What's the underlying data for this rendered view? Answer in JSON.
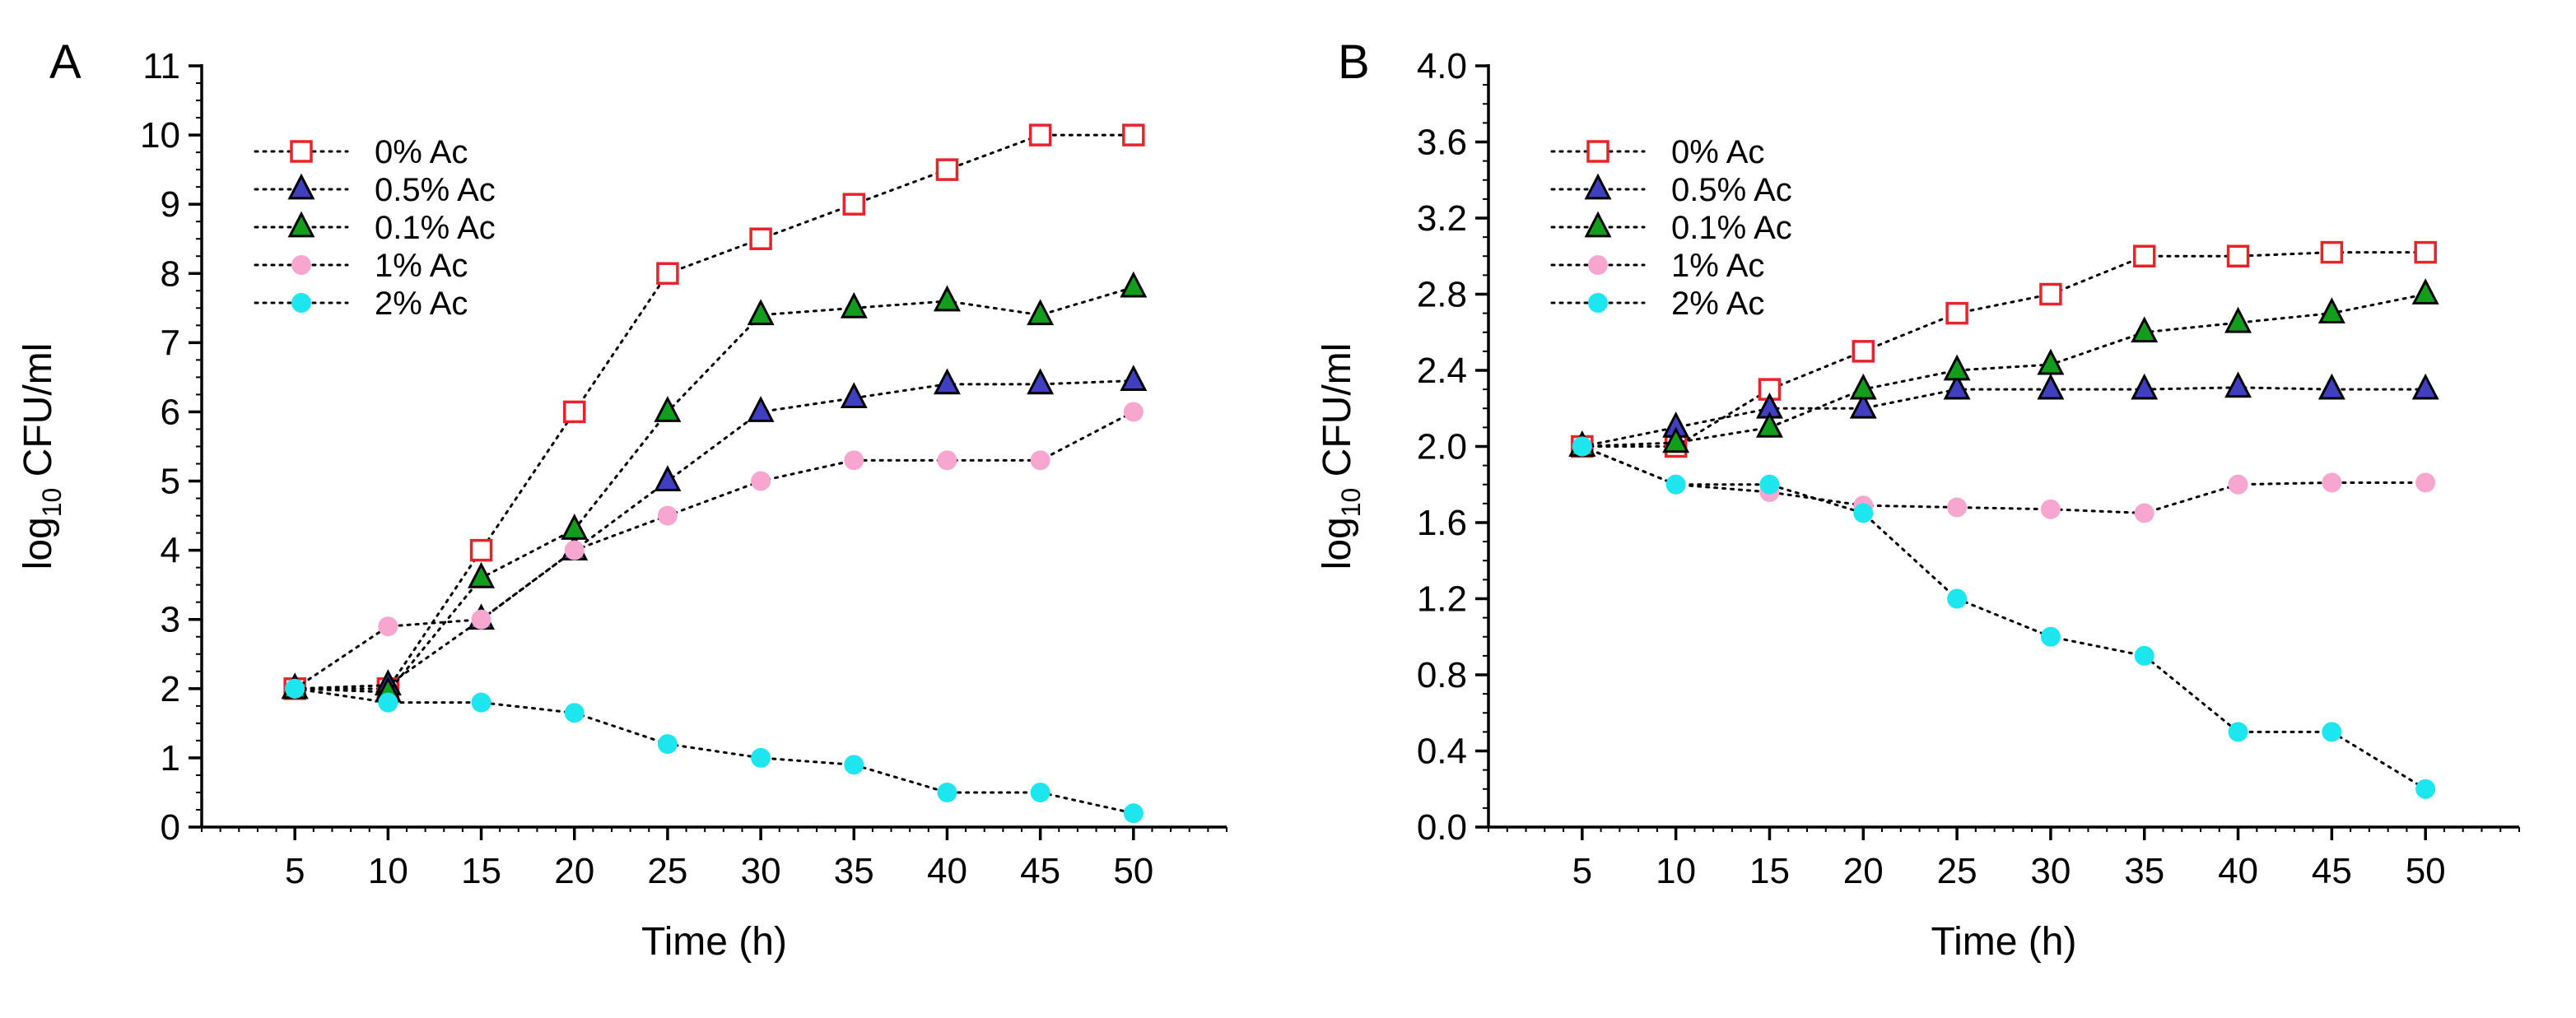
{
  "figure": {
    "panels": [
      "A",
      "B"
    ]
  },
  "styles": {
    "colors": {
      "0% Ac": "#e8232a",
      "0.5% Ac": "#3f3fbf",
      "0.1% Ac": "#129e1c",
      "1% Ac": "#f7a6cf",
      "2% Ac": "#1ee6ef"
    },
    "markers": {
      "0% Ac": "open-square",
      "0.5% Ac": "triangle",
      "0.1% Ac": "triangle",
      "1% Ac": "circle",
      "2% Ac": "circle"
    }
  },
  "chart_data": [
    {
      "panel_label": "A",
      "type": "line",
      "title": "",
      "xlabel": "Time (h)",
      "ylabel": "log",
      "ylabel_sub": "10",
      "ylabel_rest": " CFU/ml",
      "x": [
        5,
        10,
        15,
        20,
        25,
        30,
        35,
        40,
        45,
        50
      ],
      "xticks": [
        "5",
        "10",
        "15",
        "20",
        "25",
        "30",
        "35",
        "40",
        "45",
        "50"
      ],
      "yticks": [
        "0",
        "1",
        "2",
        "3",
        "4",
        "5",
        "6",
        "7",
        "8",
        "9",
        "10",
        "11"
      ],
      "ylim": [
        0,
        11
      ],
      "legend_position": "top-left",
      "series": [
        {
          "name": "0% Ac",
          "values": [
            2.0,
            2.0,
            4.0,
            6.0,
            8.0,
            8.5,
            9.0,
            9.5,
            10.0,
            10.0
          ]
        },
        {
          "name": "0.5% Ac",
          "values": [
            2.0,
            2.05,
            3.0,
            4.0,
            5.0,
            6.0,
            6.2,
            6.4,
            6.4,
            6.45
          ]
        },
        {
          "name": "0.1% Ac",
          "values": [
            2.0,
            1.95,
            3.6,
            4.3,
            6.0,
            7.4,
            7.5,
            7.6,
            7.4,
            7.8
          ]
        },
        {
          "name": "1% Ac",
          "values": [
            2.0,
            2.9,
            3.0,
            4.0,
            4.5,
            5.0,
            5.3,
            5.3,
            5.3,
            6.0
          ]
        },
        {
          "name": "2% Ac",
          "values": [
            2.0,
            1.8,
            1.8,
            1.65,
            1.2,
            1.0,
            0.9,
            0.5,
            0.5,
            0.2
          ]
        }
      ]
    },
    {
      "panel_label": "B",
      "type": "line",
      "title": "",
      "xlabel": "Time (h)",
      "ylabel": "log",
      "ylabel_sub": "10",
      "ylabel_rest": " CFU/ml",
      "x": [
        5,
        10,
        15,
        20,
        25,
        30,
        35,
        40,
        45,
        50
      ],
      "xticks": [
        "5",
        "10",
        "15",
        "20",
        "25",
        "30",
        "35",
        "40",
        "45",
        "50"
      ],
      "yticks": [
        "0.0",
        "0.4",
        "0.8",
        "1.2",
        "1.6",
        "2.0",
        "2.4",
        "2.8",
        "3.2",
        "3.6",
        "4.0"
      ],
      "ylim": [
        0,
        4.0
      ],
      "legend_position": "top-left",
      "series": [
        {
          "name": "0% Ac",
          "values": [
            2.0,
            2.0,
            2.3,
            2.5,
            2.7,
            2.8,
            3.0,
            3.0,
            3.02,
            3.02
          ]
        },
        {
          "name": "0.5% Ac",
          "values": [
            2.0,
            2.1,
            2.2,
            2.2,
            2.3,
            2.3,
            2.3,
            2.31,
            2.3,
            2.3
          ]
        },
        {
          "name": "0.1% Ac",
          "values": [
            2.0,
            2.02,
            2.1,
            2.3,
            2.4,
            2.43,
            2.6,
            2.65,
            2.7,
            2.8
          ]
        },
        {
          "name": "1% Ac",
          "values": [
            2.0,
            1.8,
            1.76,
            1.69,
            1.68,
            1.67,
            1.65,
            1.8,
            1.81,
            1.81
          ]
        },
        {
          "name": "2% Ac",
          "values": [
            2.0,
            1.8,
            1.8,
            1.65,
            1.2,
            1.0,
            0.9,
            0.5,
            0.5,
            0.2
          ]
        }
      ]
    }
  ]
}
